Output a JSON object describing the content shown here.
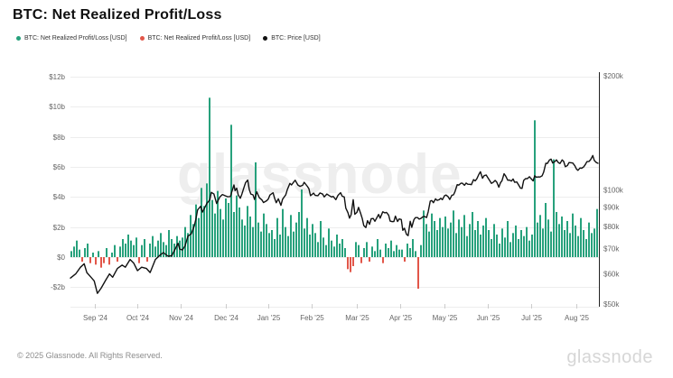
{
  "header": {
    "title": "BTC: Net Realized Profit/Loss"
  },
  "branding": {
    "watermark": "glassnode",
    "logo": "glassnode"
  },
  "footer": {
    "copyright": "© 2025 Glassnode. All Rights Reserved."
  },
  "chart_data": {
    "type": "bar+line",
    "title": "BTC: Net Realized Profit/Loss",
    "legend": [
      {
        "label": "BTC: Net Realized Profit/Loss [USD]",
        "color": "#27a17c",
        "marker": "dot"
      },
      {
        "label": "BTC: Net Realized Profit/Loss [USD]",
        "color": "#e25649",
        "marker": "dot"
      },
      {
        "label": "BTC: Price [USD]",
        "color": "#111111",
        "marker": "dot"
      }
    ],
    "colors": {
      "profit": "#27a17c",
      "loss": "#e25649",
      "price": "#111111",
      "grid": "#ededed",
      "axis": "#222222",
      "tick_text": "#666666",
      "month_tick": "#cccccc"
    },
    "x_axis": {
      "labels": [
        "Sep '24",
        "Oct '24",
        "Nov '24",
        "Dec '24",
        "Jan '25",
        "Feb '25",
        "Mar '25",
        "Apr '25",
        "May '25",
        "Jun '25",
        "Jul '25",
        "Aug '25"
      ],
      "fractions": [
        0.046,
        0.127,
        0.209,
        0.294,
        0.375,
        0.457,
        0.543,
        0.625,
        0.709,
        0.791,
        0.873,
        0.959
      ]
    },
    "y_left": {
      "unit": "USD billions",
      "ticks": [
        {
          "label": "$12b",
          "v": 12
        },
        {
          "label": "$10b",
          "v": 10
        },
        {
          "label": "$8b",
          "v": 8
        },
        {
          "label": "$6b",
          "v": 6
        },
        {
          "label": "$4b",
          "v": 4
        },
        {
          "label": "$2b",
          "v": 2
        },
        {
          "label": "$0",
          "v": 0
        },
        {
          "label": "-$2b",
          "v": -2
        }
      ]
    },
    "y_right": {
      "unit": "USD",
      "scale": "log",
      "ticks": [
        {
          "label": "$200k",
          "k": 200
        },
        {
          "label": "$100k",
          "k": 100
        },
        {
          "label": "$90k",
          "k": 90
        },
        {
          "label": "$80k",
          "k": 80
        },
        {
          "label": "$70k",
          "k": 70
        },
        {
          "label": "$60k",
          "k": 60
        },
        {
          "label": "$50k",
          "k": 50
        }
      ]
    },
    "bars": {
      "name": "BTC: Net Realized Profit/Loss [USD]",
      "unit": "USD billions (negative = net loss)",
      "values": [
        0.4,
        0.7,
        1.1,
        0.5,
        -0.3,
        0.6,
        0.9,
        -0.4,
        0.3,
        -0.5,
        0.4,
        -0.7,
        -0.4,
        0.6,
        -0.5,
        0.3,
        0.8,
        -0.3,
        0.7,
        1.2,
        0.9,
        1.5,
        1.1,
        0.8,
        1.3,
        -0.4,
        0.8,
        1.2,
        -0.3,
        0.9,
        1.4,
        0.7,
        1.1,
        1.6,
        1.0,
        0.8,
        1.8,
        1.2,
        0.9,
        1.4,
        1.1,
        1.3,
        2.0,
        1.6,
        2.8,
        2.2,
        3.5,
        2.6,
        4.6,
        3.4,
        4.9,
        10.6,
        3.8,
        2.9,
        4.4,
        3.2,
        2.5,
        3.9,
        3.6,
        8.8,
        3.0,
        4.1,
        3.3,
        2.5,
        2.1,
        3.4,
        2.7,
        2.0,
        6.3,
        2.3,
        1.7,
        2.9,
        2.2,
        1.6,
        1.8,
        1.2,
        2.6,
        1.5,
        3.2,
        2.0,
        1.4,
        2.8,
        1.7,
        2.3,
        3.0,
        4.5,
        1.9,
        2.6,
        1.5,
        2.2,
        1.6,
        1.0,
        2.4,
        1.3,
        0.8,
        1.9,
        1.1,
        0.7,
        1.5,
        0.9,
        1.2,
        0.6,
        -0.8,
        -1.0,
        -0.6,
        1.0,
        0.8,
        -0.4,
        0.6,
        1.0,
        -0.3,
        0.7,
        0.4,
        1.2,
        0.5,
        -0.4,
        0.9,
        0.6,
        1.1,
        0.4,
        0.8,
        0.5,
        0.5,
        -0.3,
        0.9,
        0.6,
        1.2,
        0.4,
        -2.1,
        0.8,
        3.1,
        2.2,
        1.7,
        2.9,
        2.4,
        1.8,
        2.6,
        2.0,
        2.7,
        1.9,
        2.3,
        3.1,
        1.6,
        2.5,
        2.0,
        2.8,
        1.4,
        2.2,
        3.0,
        1.8,
        2.4,
        1.5,
        2.1,
        2.6,
        1.8,
        1.2,
        2.2,
        1.5,
        0.9,
        1.9,
        1.3,
        2.4,
        1.0,
        1.6,
        2.1,
        1.2,
        1.8,
        1.4,
        2.0,
        1.1,
        1.5,
        9.1,
        2.3,
        2.8,
        1.9,
        3.6,
        2.5,
        1.7,
        6.5,
        3.0,
        2.2,
        2.7,
        1.8,
        2.4,
        1.6,
        2.9,
        2.1,
        1.4,
        2.6,
        1.8,
        1.2,
        2.3,
        1.6,
        1.9,
        3.2
      ]
    },
    "price_line": {
      "name": "BTC: Price [USD]",
      "unit": "USD thousands",
      "points": [
        [
          0,
          58.5
        ],
        [
          0.01,
          60
        ],
        [
          0.019,
          62.5
        ],
        [
          0.026,
          63.8
        ],
        [
          0.031,
          60.5
        ],
        [
          0.038,
          59
        ],
        [
          0.045,
          57.5
        ],
        [
          0.051,
          53.3
        ],
        [
          0.058,
          55
        ],
        [
          0.067,
          57.8
        ],
        [
          0.074,
          60
        ],
        [
          0.08,
          58.8
        ],
        [
          0.089,
          62
        ],
        [
          0.098,
          63.3
        ],
        [
          0.104,
          62.5
        ],
        [
          0.113,
          65.5
        ],
        [
          0.12,
          64
        ],
        [
          0.127,
          61.2
        ],
        [
          0.135,
          62.5
        ],
        [
          0.144,
          62
        ],
        [
          0.151,
          60.5
        ],
        [
          0.161,
          65.5
        ],
        [
          0.17,
          67.3
        ],
        [
          0.176,
          68.3
        ],
        [
          0.185,
          66.8
        ],
        [
          0.192,
          67
        ],
        [
          0.199,
          70
        ],
        [
          0.204,
          72.3
        ],
        [
          0.207,
          69.8
        ],
        [
          0.212,
          69.4
        ],
        [
          0.217,
          71
        ],
        [
          0.223,
          75.6
        ],
        [
          0.229,
          76.5
        ],
        [
          0.235,
          80.5
        ],
        [
          0.238,
          84
        ],
        [
          0.241,
          88.5
        ],
        [
          0.247,
          90.5
        ],
        [
          0.25,
          87.3
        ],
        [
          0.255,
          90
        ],
        [
          0.259,
          92.3
        ],
        [
          0.264,
          94
        ],
        [
          0.267,
          98.5
        ],
        [
          0.272,
          97.5
        ],
        [
          0.277,
          92
        ],
        [
          0.283,
          95.7
        ],
        [
          0.288,
          97.2
        ],
        [
          0.293,
          96.5
        ],
        [
          0.298,
          95.9
        ],
        [
          0.303,
          96
        ],
        [
          0.306,
          99
        ],
        [
          0.31,
          103
        ],
        [
          0.312,
          99.5
        ],
        [
          0.315,
          101
        ],
        [
          0.318,
          97
        ],
        [
          0.322,
          95
        ],
        [
          0.325,
          97.5
        ],
        [
          0.329,
          101.5
        ],
        [
          0.332,
          104.5
        ],
        [
          0.336,
          106.1
        ],
        [
          0.339,
          100
        ],
        [
          0.342,
          97.5
        ],
        [
          0.346,
          97
        ],
        [
          0.349,
          94.3
        ],
        [
          0.353,
          98.8
        ],
        [
          0.358,
          95.3
        ],
        [
          0.363,
          94
        ],
        [
          0.366,
          92.6
        ],
        [
          0.372,
          93.6
        ],
        [
          0.375,
          94.6
        ],
        [
          0.378,
          96.9
        ],
        [
          0.384,
          98.2
        ],
        [
          0.387,
          95
        ],
        [
          0.39,
          92.5
        ],
        [
          0.394,
          94.7
        ],
        [
          0.399,
          91
        ],
        [
          0.402,
          94.5
        ],
        [
          0.408,
          97
        ],
        [
          0.411,
          100
        ],
        [
          0.416,
          104
        ],
        [
          0.419,
          103
        ],
        [
          0.423,
          104.8
        ],
        [
          0.426,
          106
        ],
        [
          0.431,
          103
        ],
        [
          0.435,
          102.1
        ],
        [
          0.44,
          102.8
        ],
        [
          0.443,
          104.7
        ],
        [
          0.449,
          102.2
        ],
        [
          0.452,
          100.6
        ],
        [
          0.455,
          96.5
        ],
        [
          0.461,
          98
        ],
        [
          0.464,
          96.7
        ],
        [
          0.469,
          96.5
        ],
        [
          0.473,
          98.1
        ],
        [
          0.478,
          97.4
        ],
        [
          0.481,
          95.8
        ],
        [
          0.486,
          97.5
        ],
        [
          0.49,
          96.6
        ],
        [
          0.495,
          95.7
        ],
        [
          0.498,
          96.1
        ],
        [
          0.503,
          94.2
        ],
        [
          0.507,
          96.7
        ],
        [
          0.512,
          98.3
        ],
        [
          0.515,
          96.2
        ],
        [
          0.519,
          95.8
        ],
        [
          0.522,
          89.5
        ],
        [
          0.526,
          87
        ],
        [
          0.529,
          84.2
        ],
        [
          0.532,
          86
        ],
        [
          0.536,
          94.2
        ],
        [
          0.539,
          86.2
        ],
        [
          0.543,
          87.2
        ],
        [
          0.546,
          89.9
        ],
        [
          0.55,
          86.7
        ],
        [
          0.553,
          84
        ],
        [
          0.556,
          80.5
        ],
        [
          0.56,
          79.5
        ],
        [
          0.563,
          82.9
        ],
        [
          0.567,
          81.1
        ],
        [
          0.57,
          83.9
        ],
        [
          0.574,
          84
        ],
        [
          0.577,
          82.6
        ],
        [
          0.58,
          84
        ],
        [
          0.584,
          86.1
        ],
        [
          0.587,
          84.2
        ],
        [
          0.592,
          87.5
        ],
        [
          0.596,
          86.9
        ],
        [
          0.599,
          87.2
        ],
        [
          0.603,
          85.8
        ],
        [
          0.606,
          82.7
        ],
        [
          0.61,
          82.4
        ],
        [
          0.613,
          82.5
        ],
        [
          0.616,
          85.2
        ],
        [
          0.62,
          82.5
        ],
        [
          0.623,
          83.8
        ],
        [
          0.627,
          83.5
        ],
        [
          0.63,
          78.2
        ],
        [
          0.633,
          79.2
        ],
        [
          0.637,
          76.3
        ],
        [
          0.64,
          75.7
        ],
        [
          0.644,
          82.6
        ],
        [
          0.647,
          79.6
        ],
        [
          0.651,
          83.4
        ],
        [
          0.654,
          84.5
        ],
        [
          0.658,
          84.5
        ],
        [
          0.661,
          83.7
        ],
        [
          0.664,
          84
        ],
        [
          0.668,
          84.9
        ],
        [
          0.671,
          85.1
        ],
        [
          0.675,
          84.5
        ],
        [
          0.678,
          87.5
        ],
        [
          0.682,
          93.4
        ],
        [
          0.685,
          93.7
        ],
        [
          0.688,
          92.5
        ],
        [
          0.692,
          94.7
        ],
        [
          0.695,
          93.8
        ],
        [
          0.699,
          94.2
        ],
        [
          0.702,
          95
        ],
        [
          0.705,
          94.2
        ],
        [
          0.709,
          96.5
        ],
        [
          0.712,
          96.9
        ],
        [
          0.716,
          95.9
        ],
        [
          0.719,
          94.3
        ],
        [
          0.723,
          96.8
        ],
        [
          0.726,
          97
        ],
        [
          0.729,
          99
        ],
        [
          0.733,
          103.2
        ],
        [
          0.736,
          102.9
        ],
        [
          0.74,
          104.1
        ],
        [
          0.743,
          104.1
        ],
        [
          0.747,
          102.8
        ],
        [
          0.75,
          104.2
        ],
        [
          0.753,
          103.5
        ],
        [
          0.757,
          103.4
        ],
        [
          0.76,
          103.2
        ],
        [
          0.764,
          106.4
        ],
        [
          0.767,
          105.6
        ],
        [
          0.77,
          106.8
        ],
        [
          0.774,
          109.7
        ],
        [
          0.777,
          111.7
        ],
        [
          0.781,
          107.3
        ],
        [
          0.784,
          109
        ],
        [
          0.788,
          109.4
        ],
        [
          0.791,
          107.8
        ],
        [
          0.795,
          105.6
        ],
        [
          0.798,
          104
        ],
        [
          0.801,
          104.6
        ],
        [
          0.805,
          105.9
        ],
        [
          0.808,
          104.8
        ],
        [
          0.812,
          101.6
        ],
        [
          0.815,
          104.4
        ],
        [
          0.818,
          105.7
        ],
        [
          0.822,
          110.3
        ],
        [
          0.825,
          108.7
        ],
        [
          0.829,
          106
        ],
        [
          0.832,
          106.1
        ],
        [
          0.836,
          105.5
        ],
        [
          0.839,
          106.8
        ],
        [
          0.842,
          104.7
        ],
        [
          0.846,
          104.9
        ],
        [
          0.849,
          103.3
        ],
        [
          0.853,
          101
        ],
        [
          0.856,
          100.9
        ],
        [
          0.859,
          105.9
        ],
        [
          0.863,
          107.1
        ],
        [
          0.866,
          107
        ],
        [
          0.87,
          108.3
        ],
        [
          0.873,
          107.1
        ],
        [
          0.877,
          105.6
        ],
        [
          0.88,
          108.9
        ],
        [
          0.883,
          108
        ],
        [
          0.887,
          108.2
        ],
        [
          0.89,
          108.1
        ],
        [
          0.894,
          108.9
        ],
        [
          0.897,
          111.3
        ],
        [
          0.901,
          117.5
        ],
        [
          0.904,
          117.4
        ],
        [
          0.908,
          119.9
        ],
        [
          0.911,
          120.6
        ],
        [
          0.914,
          117.7
        ],
        [
          0.918,
          118.7
        ],
        [
          0.921,
          120
        ],
        [
          0.925,
          117.9
        ],
        [
          0.928,
          117.4
        ],
        [
          0.932,
          120
        ],
        [
          0.935,
          118.8
        ],
        [
          0.938,
          115.1
        ],
        [
          0.942,
          115.9
        ],
        [
          0.945,
          118
        ],
        [
          0.949,
          117.9
        ],
        [
          0.952,
          117.7
        ],
        [
          0.956,
          115.8
        ],
        [
          0.959,
          113.5
        ],
        [
          0.962,
          112.6
        ],
        [
          0.966,
          114.2
        ],
        [
          0.969,
          114
        ],
        [
          0.973,
          115
        ],
        [
          0.976,
          116.7
        ],
        [
          0.979,
          118.7
        ],
        [
          0.983,
          118.9
        ],
        [
          0.986,
          120.1
        ],
        [
          0.99,
          123.2
        ],
        [
          0.993,
          119.5
        ],
        [
          0.997,
          118
        ],
        [
          1,
          117.5
        ]
      ]
    }
  }
}
